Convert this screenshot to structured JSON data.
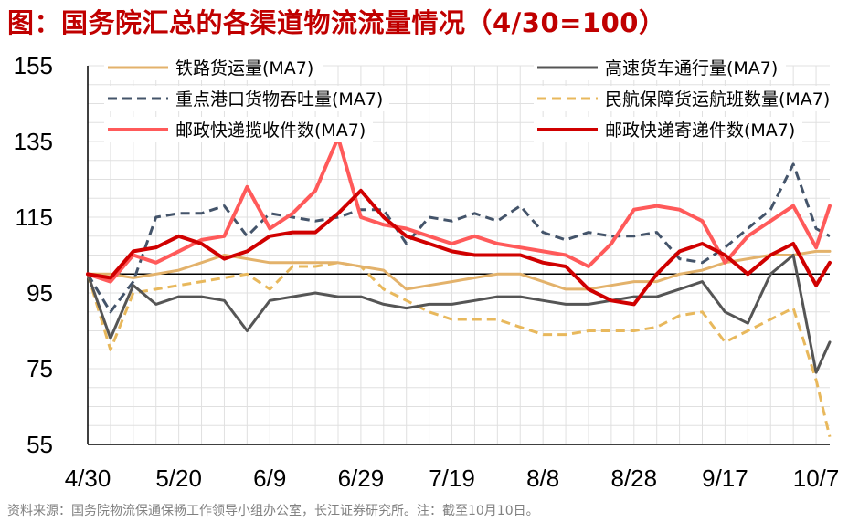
{
  "title": "图：国务院汇总的各渠道物流流量情况（4/30=100）",
  "source": "资料来源：国务院物流保通保畅工作领导小组办公室，长江证券研究所。注：截至10月10日。",
  "chart_data": {
    "type": "line",
    "title": "图：国务院汇总的各渠道物流流量情况（4/30=100）",
    "xlabel": "",
    "ylabel": "",
    "ylim": [
      55,
      155
    ],
    "yticks": [
      55,
      75,
      95,
      115,
      135,
      155
    ],
    "x_range": [
      0,
      163
    ],
    "xticks": [
      {
        "label": "4/30",
        "day": 0
      },
      {
        "label": "5/20",
        "day": 20
      },
      {
        "label": "6/9",
        "day": 40
      },
      {
        "label": "6/29",
        "day": 60
      },
      {
        "label": "7/19",
        "day": 80
      },
      {
        "label": "8/8",
        "day": 100
      },
      {
        "label": "8/28",
        "day": 120
      },
      {
        "label": "9/17",
        "day": 140
      },
      {
        "label": "10/7",
        "day": 160
      }
    ],
    "reference_line": 100,
    "grid": "horizontal and vertical, light gray",
    "legend_position": "top, two columns",
    "x_days": [
      0,
      5,
      10,
      15,
      20,
      25,
      30,
      35,
      40,
      45,
      50,
      55,
      60,
      65,
      70,
      75,
      80,
      85,
      90,
      95,
      100,
      105,
      110,
      115,
      120,
      125,
      130,
      135,
      140,
      145,
      150,
      155,
      160,
      163
    ],
    "series": [
      {
        "name": "铁路货运量(MA7)",
        "color": "#e3b26b",
        "dash": "solid",
        "width": 3,
        "values": [
          100,
          100,
          99,
          100,
          101,
          103,
          105,
          104,
          103,
          103,
          103,
          103,
          102,
          101,
          96,
          97,
          98,
          99,
          100,
          100,
          98,
          96,
          96,
          97,
          98,
          98,
          100,
          101,
          103,
          104,
          105,
          105,
          106,
          106
        ]
      },
      {
        "name": "高速货车通行量(MA7)",
        "color": "#555555",
        "dash": "solid",
        "width": 3,
        "values": [
          100,
          83,
          97,
          92,
          94,
          94,
          93,
          85,
          93,
          94,
          95,
          94,
          94,
          92,
          91,
          92,
          92,
          93,
          94,
          94,
          93,
          92,
          92,
          93,
          94,
          94,
          96,
          98,
          90,
          87,
          100,
          105,
          74,
          82
        ]
      },
      {
        "name": "重点港口货物吞吐量(MA7)",
        "color": "#44546a",
        "dash": "dashed",
        "width": 3,
        "values": [
          100,
          90,
          98,
          115,
          116,
          116,
          118,
          110,
          116,
          115,
          114,
          115,
          117,
          117,
          108,
          115,
          114,
          116,
          114,
          118,
          111,
          109,
          111,
          110,
          110,
          111,
          104,
          103,
          107,
          112,
          117,
          129,
          112,
          110
        ]
      },
      {
        "name": "民航保障货运航班数量(MA7)",
        "color": "#e8b85c",
        "dash": "dashed",
        "width": 3,
        "values": [
          100,
          80,
          95,
          96,
          97,
          98,
          99,
          100,
          96,
          102,
          102,
          103,
          102,
          96,
          93,
          90,
          88,
          88,
          88,
          86,
          84,
          84,
          85,
          85,
          85,
          86,
          89,
          90,
          82,
          85,
          88,
          91,
          72,
          57
        ]
      },
      {
        "name": "邮政快递揽收件数(MA7)",
        "color": "#ff5a5a",
        "dash": "solid",
        "width": 4,
        "values": [
          100,
          98,
          105,
          103,
          106,
          109,
          110,
          123,
          112,
          116,
          122,
          136,
          115,
          113,
          112,
          110,
          108,
          110,
          108,
          107,
          106,
          105,
          102,
          108,
          117,
          118,
          117,
          114,
          103,
          110,
          114,
          118,
          107,
          118
        ]
      },
      {
        "name": "邮政快递寄递件数(MA7)",
        "color": "#d00000",
        "dash": "solid",
        "width": 4,
        "values": [
          100,
          99,
          106,
          107,
          110,
          108,
          104,
          106,
          110,
          111,
          111,
          116,
          122,
          115,
          110,
          108,
          106,
          105,
          105,
          105,
          103,
          102,
          96,
          93,
          92,
          100,
          106,
          108,
          105,
          100,
          105,
          108,
          97,
          103
        ]
      }
    ]
  }
}
